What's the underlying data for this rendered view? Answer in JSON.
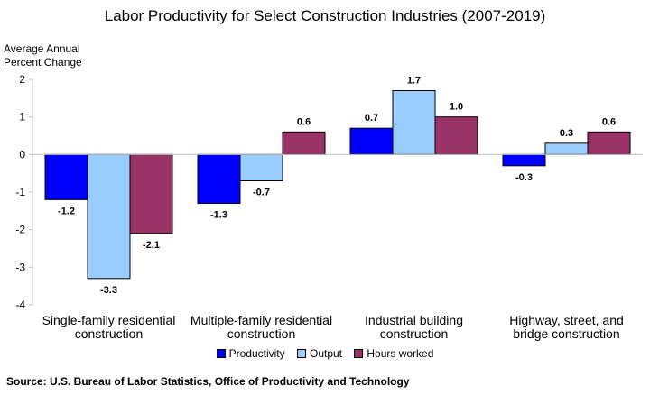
{
  "chart_data": {
    "type": "bar",
    "title": "Labor Productivity for Select Construction Industries (2007-2019)",
    "ylabel_lines": [
      "Average Annual",
      "Percent Change"
    ],
    "categories": [
      [
        "Single-family residential",
        "construction"
      ],
      [
        "Multiple-family residential",
        "construction"
      ],
      [
        "Industrial building",
        "construction"
      ],
      [
        "Highway, street, and",
        "bridge construction"
      ]
    ],
    "series": [
      {
        "name": "Productivity",
        "color": "#0000FF",
        "values": [
          -1.2,
          -1.3,
          0.7,
          -0.3
        ]
      },
      {
        "name": "Output",
        "color": "#99CCFF",
        "values": [
          -3.3,
          -0.7,
          1.7,
          0.3
        ]
      },
      {
        "name": "Hours worked",
        "color": "#993366",
        "values": [
          -2.1,
          0.6,
          1.0,
          0.6
        ]
      }
    ],
    "ylim": [
      -4,
      2
    ],
    "yticks": [
      "-4",
      "-3",
      "-2",
      "-1",
      "0",
      "1",
      "2"
    ],
    "grid": false,
    "legend_position": "bottom"
  },
  "source": "Source: U.S. Bureau of Labor Statistics, Office of Productivity and Technology"
}
